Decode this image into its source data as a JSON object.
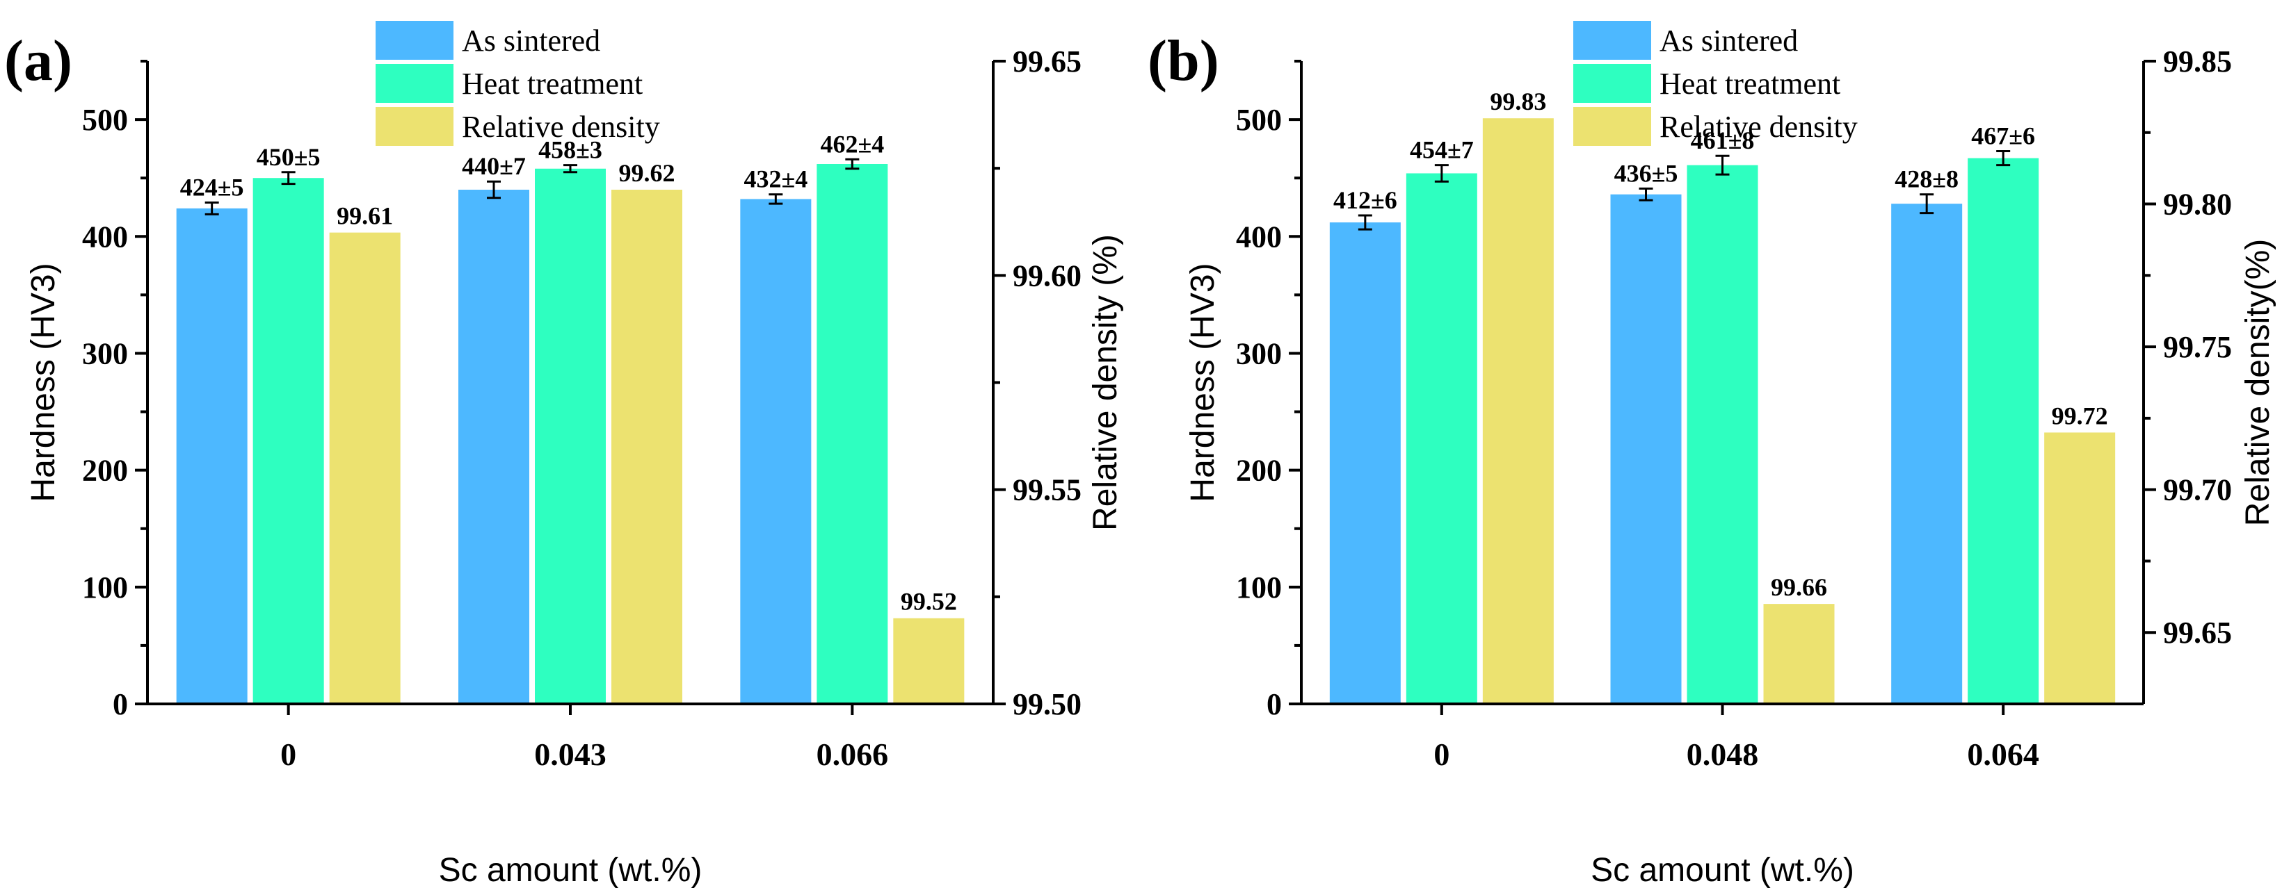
{
  "chart_data": [
    {
      "type": "bar",
      "panel_label": "(a)",
      "categories": [
        "0",
        "0.043",
        "0.066"
      ],
      "xlabel": "Sc amount (wt.%)",
      "ylabel": "Hardness (HV3)",
      "ylim": [
        0,
        550
      ],
      "yticks": [
        0,
        100,
        200,
        300,
        400,
        500
      ],
      "y2label": "Relative density (%)",
      "y2lim": [
        99.5,
        99.65
      ],
      "y2ticks": [
        "99.50",
        "99.55",
        "99.60",
        "99.65"
      ],
      "legend": [
        "As sintered",
        "Heat treatment",
        "Relative density"
      ],
      "series": [
        {
          "name": "As sintered",
          "axis": "left",
          "color": "#4db8ff",
          "values": [
            424,
            440,
            432
          ],
          "errors": [
            5,
            7,
            4
          ],
          "labels": [
            "424±5",
            "440±7",
            "432±4"
          ]
        },
        {
          "name": "Heat treatment",
          "axis": "left",
          "color": "#2effc0",
          "values": [
            450,
            458,
            462
          ],
          "errors": [
            5,
            3,
            4
          ],
          "labels": [
            "450±5",
            "458±3",
            "462±4"
          ]
        },
        {
          "name": "Relative density",
          "axis": "right",
          "color": "#ece270",
          "values": [
            99.61,
            99.62,
            99.52
          ],
          "labels": [
            "99.61",
            "99.62",
            "99.52"
          ]
        }
      ]
    },
    {
      "type": "bar",
      "panel_label": "(b)",
      "categories": [
        "0",
        "0.048",
        "0.064"
      ],
      "xlabel": "Sc amount (wt.%)",
      "ylabel": "Hardness (HV3)",
      "ylim": [
        0,
        550
      ],
      "yticks": [
        0,
        100,
        200,
        300,
        400,
        500
      ],
      "y2label": "Relative density(%)",
      "y2lim": [
        99.625,
        99.85
      ],
      "y2ticks": [
        "99.65",
        "99.70",
        "99.75",
        "99.80",
        "99.85"
      ],
      "legend": [
        "As sintered",
        "Heat treatment",
        "Relative density"
      ],
      "series": [
        {
          "name": "As sintered",
          "axis": "left",
          "color": "#4db8ff",
          "values": [
            412,
            436,
            428
          ],
          "errors": [
            6,
            5,
            8
          ],
          "labels": [
            "412±6",
            "436±5",
            "428±8"
          ]
        },
        {
          "name": "Heat treatment",
          "axis": "left",
          "color": "#2effc0",
          "values": [
            454,
            461,
            467
          ],
          "errors": [
            7,
            8,
            6
          ],
          "labels": [
            "454±7",
            "461±8",
            "467±6"
          ]
        },
        {
          "name": "Relative density",
          "axis": "right",
          "color": "#ece270",
          "values": [
            99.83,
            99.66,
            99.72
          ],
          "labels": [
            "99.83",
            "99.66",
            "99.72"
          ]
        }
      ]
    }
  ]
}
